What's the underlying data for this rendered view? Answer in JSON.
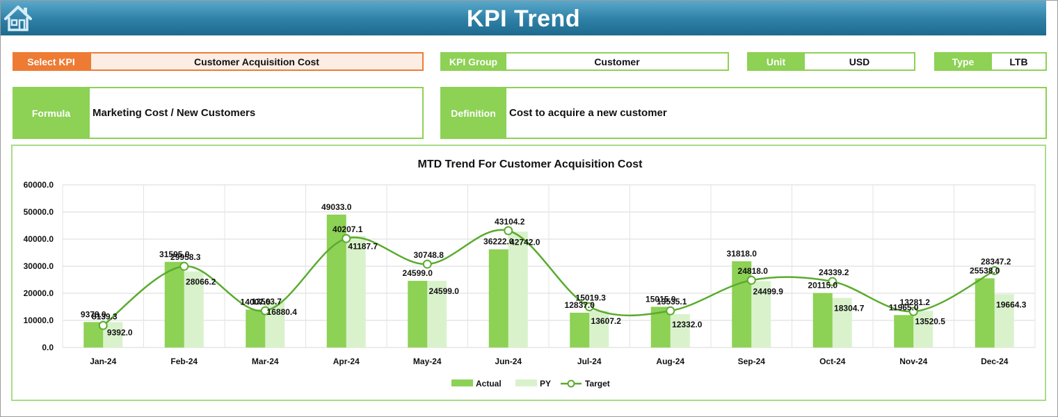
{
  "header": {
    "title": "KPI Trend",
    "home_icon": "home-icon"
  },
  "selectors": {
    "select_kpi": {
      "label": "Select KPI",
      "value": "Customer Acquisition Cost"
    },
    "kpi_group": {
      "label": "KPI Group",
      "value": "Customer"
    },
    "unit": {
      "label": "Unit",
      "value": "USD"
    },
    "type": {
      "label": "Type",
      "value": "LTB"
    }
  },
  "info": {
    "formula": {
      "label": "Formula",
      "value": "Marketing Cost / New Customers"
    },
    "definition": {
      "label": "Definition",
      "value": "Cost to acquire a new customer"
    }
  },
  "colors": {
    "actual": "#8dd155",
    "py": "#d9f2cc",
    "target": "#5aab2e",
    "accent": "#ee7b34"
  },
  "chart_data": {
    "type": "bar",
    "title": "MTD Trend For Customer Acquisition Cost",
    "categories": [
      "Jan-24",
      "Feb-24",
      "Mar-24",
      "Apr-24",
      "May-24",
      "Jun-24",
      "Jul-24",
      "Aug-24",
      "Sep-24",
      "Oct-24",
      "Nov-24",
      "Dec-24"
    ],
    "series": [
      {
        "name": "Actual",
        "type": "bar",
        "values": [
          9378,
          31595,
          14007,
          49033,
          24599,
          36222,
          12837,
          15015,
          31818,
          20115,
          11965,
          25538
        ]
      },
      {
        "name": "PY",
        "type": "bar",
        "values": [
          9392,
          28066.2,
          16880.4,
          41187.7,
          24599,
          42742,
          13607.2,
          12332,
          24499.9,
          18304.7,
          13520.5,
          19664.3
        ]
      },
      {
        "name": "Target",
        "type": "line",
        "values": [
          8139.3,
          29958.3,
          13563.7,
          40207.1,
          30748.8,
          43104.2,
          15019.3,
          13535.1,
          24818,
          24339.2,
          13281.2,
          28347.2
        ]
      }
    ],
    "value_labels": {
      "Actual": [
        "9378.0",
        "31595.0",
        "14007.0",
        "49033.0",
        "24599.0",
        "36222.0",
        "12837.0",
        "15015.0",
        "31818.0",
        "20115.0",
        "11965.0",
        "25538.0"
      ],
      "PY": [
        "9392.0",
        "28066.2",
        "16880.4",
        "41187.7",
        "24599.0",
        "42742.0",
        "13607.2",
        "12332.0",
        "24499.9",
        "18304.7",
        "13520.5",
        "19664.3"
      ],
      "Target": [
        "8139.3",
        "29958.3",
        "13563.7",
        "40207.1",
        "30748.8",
        "43104.2",
        "15019.3",
        "13535.1",
        "24818.0",
        "24339.2",
        "13281.2",
        "28347.2"
      ]
    },
    "ylim": [
      0,
      60000
    ],
    "yticks": [
      "0.0",
      "10000.0",
      "20000.0",
      "30000.0",
      "40000.0",
      "50000.0",
      "60000.0"
    ],
    "grid": true,
    "legend_position": "bottom"
  }
}
